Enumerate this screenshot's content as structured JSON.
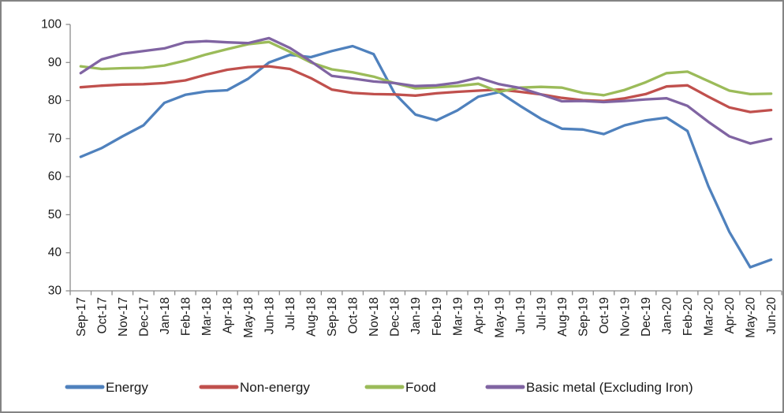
{
  "chart_data": {
    "type": "line",
    "title": "",
    "xlabel": "",
    "ylabel": "",
    "x": [
      "Sep-17",
      "Oct-17",
      "Nov-17",
      "Dec-17",
      "Jan-18",
      "Feb-18",
      "Mar-18",
      "Apr-18",
      "May-18",
      "Jun-18",
      "Jul-18",
      "Aug-18",
      "Sep-18",
      "Oct-18",
      "Nov-18",
      "Dec-18",
      "Jan-19",
      "Feb-19",
      "Mar-19",
      "Apr-19",
      "May-19",
      "Jun-19",
      "Jul-19",
      "Aug-19",
      "Sep-19",
      "Oct-19",
      "Nov-19",
      "Dec-19",
      "Jan-20",
      "Feb-20",
      "Mar-20",
      "Apr-20",
      "May-20",
      "Jun-20"
    ],
    "series": [
      {
        "name": "Energy",
        "color": "#4F81BD",
        "values": [
          65.2,
          67.5,
          70.6,
          73.5,
          79.4,
          81.5,
          82.4,
          82.7,
          85.7,
          90.0,
          92.0,
          91.4,
          93.0,
          94.3,
          92.2,
          81.9,
          76.3,
          74.8,
          77.4,
          81.0,
          82.2,
          78.6,
          75.2,
          72.6,
          72.4,
          71.2,
          73.5,
          74.8,
          75.5,
          72.0,
          57.5,
          45.5,
          36.2,
          38.2
        ]
      },
      {
        "name": "Non-energy",
        "color": "#C0504D",
        "values": [
          83.5,
          83.9,
          84.2,
          84.3,
          84.6,
          85.3,
          86.8,
          88.1,
          88.8,
          89.0,
          88.3,
          85.9,
          82.9,
          82.0,
          81.7,
          81.6,
          81.3,
          81.9,
          82.3,
          82.6,
          82.9,
          82.3,
          81.6,
          80.7,
          80.1,
          79.9,
          80.6,
          81.7,
          83.7,
          84.0,
          81.0,
          78.2,
          77.0,
          77.5
        ]
      },
      {
        "name": "Food",
        "color": "#9BBB59",
        "values": [
          89.0,
          88.3,
          88.5,
          88.6,
          89.2,
          90.5,
          92.1,
          93.5,
          94.8,
          95.4,
          92.8,
          90.0,
          88.2,
          87.4,
          86.3,
          84.6,
          83.2,
          83.5,
          83.8,
          84.4,
          82.3,
          83.4,
          83.6,
          83.4,
          82.0,
          81.4,
          82.8,
          84.8,
          87.2,
          87.6,
          85.1,
          82.6,
          81.7,
          81.8
        ]
      },
      {
        "name": "Basic metal (Excluding Iron)",
        "color": "#8064A2",
        "values": [
          87.2,
          90.8,
          92.3,
          93.0,
          93.7,
          95.3,
          95.6,
          95.3,
          95.1,
          96.4,
          93.8,
          90.3,
          86.5,
          85.8,
          85.0,
          84.6,
          83.8,
          84.0,
          84.7,
          86.0,
          84.3,
          83.3,
          81.6,
          79.8,
          79.9,
          79.6,
          79.9,
          80.3,
          80.6,
          78.6,
          74.4,
          70.6,
          68.7,
          69.9
        ]
      }
    ],
    "ylim": [
      30,
      100
    ],
    "yticks": [
      100,
      90,
      80,
      70,
      60,
      50,
      40,
      30
    ],
    "grid": false,
    "legend_position": "bottom",
    "x_label_rotation": -90
  },
  "style": {
    "axis_color": "#8C8C8C",
    "tick_color": "#8C8C8C",
    "text_color": "#1a1a1a",
    "border_color": "#848484",
    "background": "#ffffff"
  }
}
